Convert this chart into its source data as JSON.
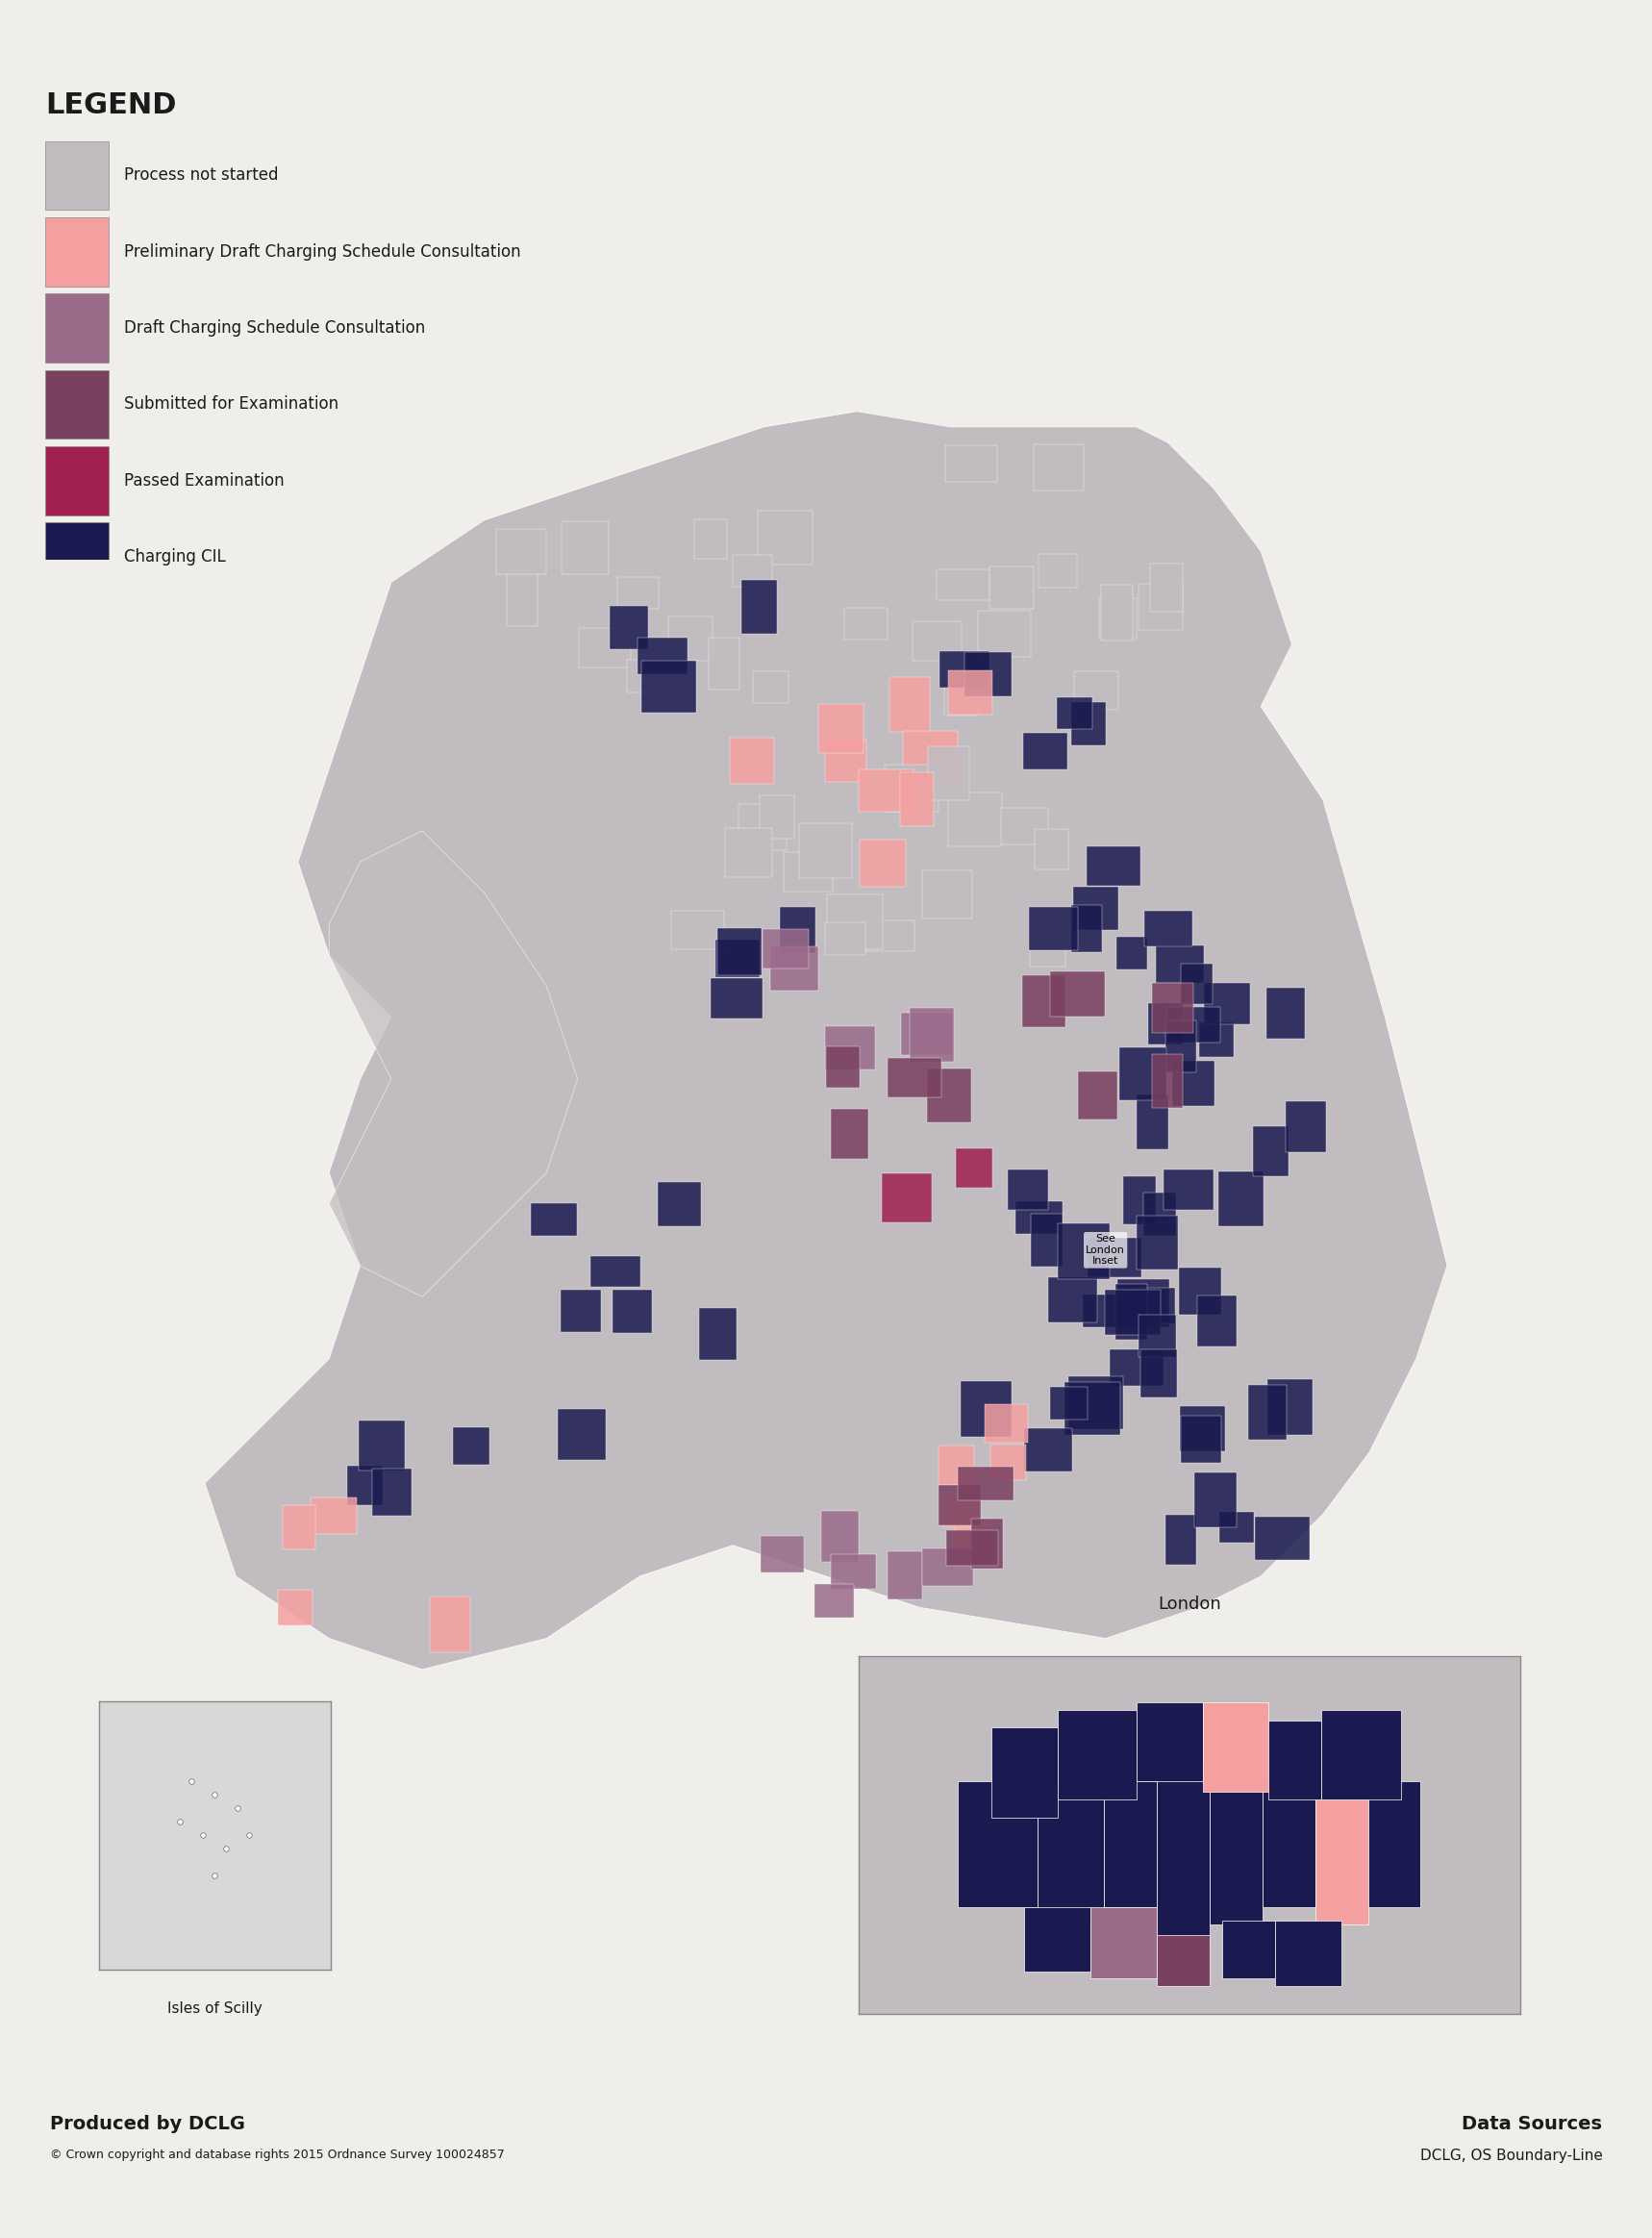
{
  "background_color": "#f0eeea",
  "legend_title": "LEGEND",
  "legend_items": [
    {
      "label": "Process not started",
      "color": "#c0bcc0"
    },
    {
      "label": "Preliminary Draft Charging Schedule Consultation",
      "color": "#f4a0a0"
    },
    {
      "label": "Draft Charging Schedule Consultation",
      "color": "#9b6b8a"
    },
    {
      "label": "Submitted for Examination",
      "color": "#7a4060"
    },
    {
      "label": "Passed Examination",
      "color": "#a02050"
    },
    {
      "label": "Charging CIL",
      "color": "#1a1a50"
    }
  ],
  "footer_left_bold": "Produced by DCLG",
  "footer_left_small": "© Crown copyright and database rights 2015 Ordnance Survey 100024857",
  "footer_right_bold": "Data Sources",
  "footer_right_small": "DCLG, OS Boundary-Line",
  "london_label": "London",
  "scilly_label": "Isles of Scilly",
  "see_london_label": "See\nLondon\nInset"
}
